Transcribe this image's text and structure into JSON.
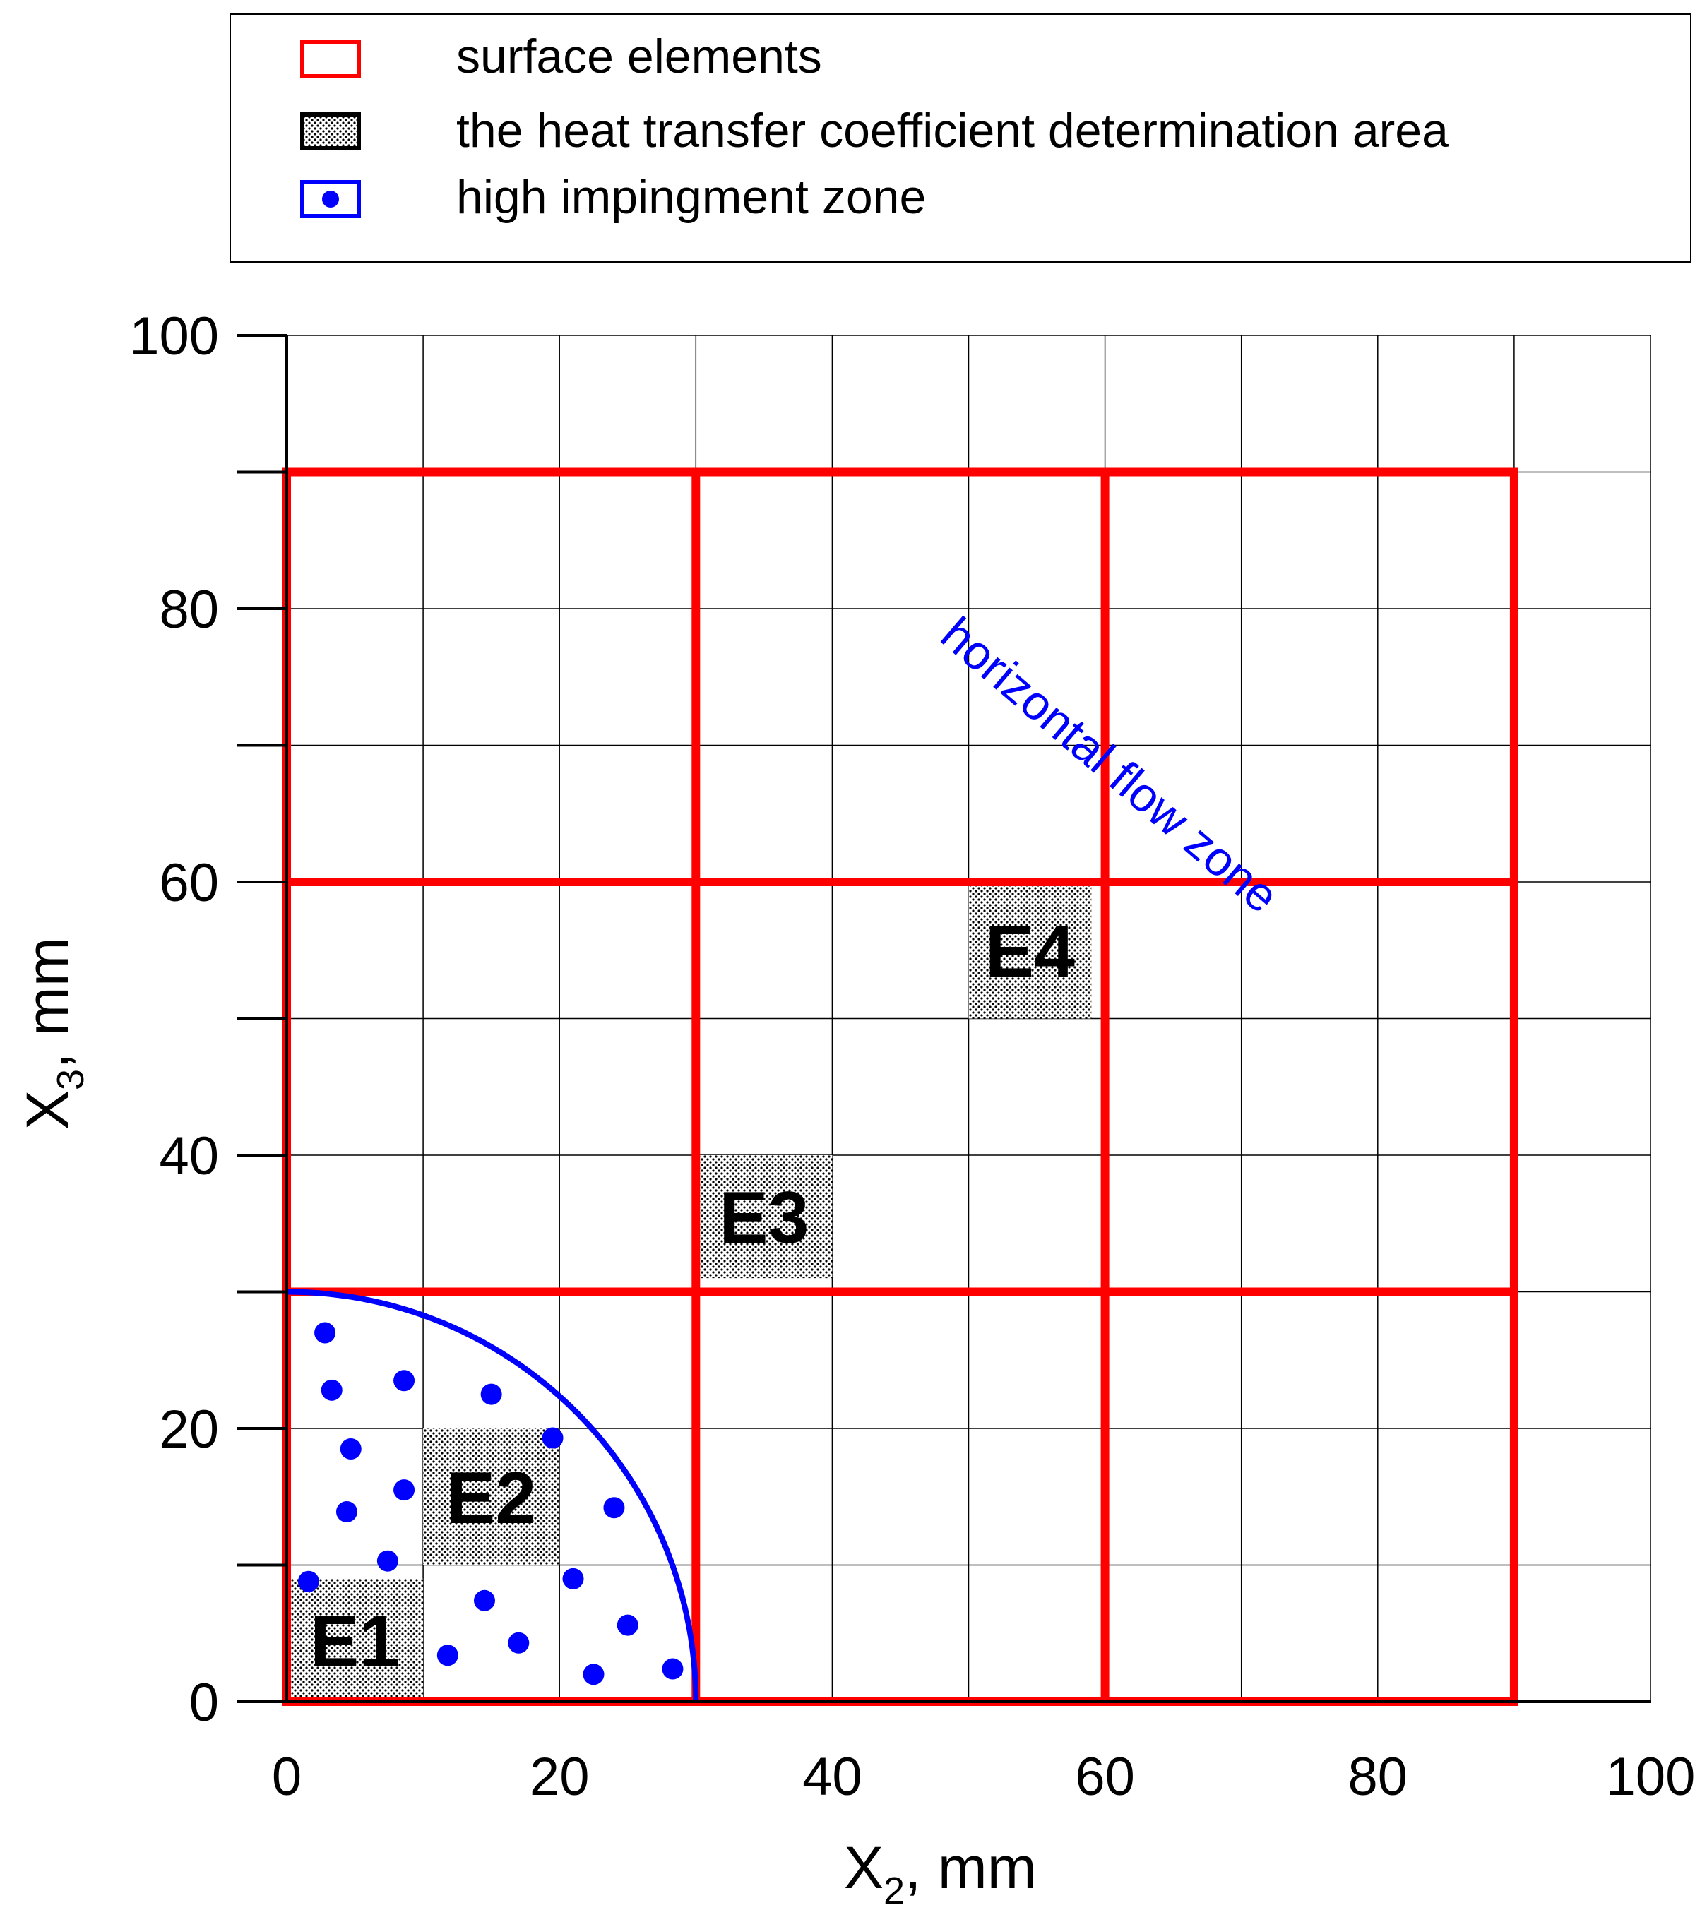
{
  "chart_data": {
    "type": "scatter",
    "xlabel": {
      "main": "X",
      "sub": "2",
      "suffix": ", mm"
    },
    "ylabel": {
      "main": "X",
      "sub": "3",
      "suffix": ", mm"
    },
    "xlim": [
      0,
      100
    ],
    "ylim": [
      0,
      100
    ],
    "xticks": [
      "0",
      "20",
      "40",
      "60",
      "80",
      "100"
    ],
    "yticks": [
      "0",
      "20",
      "40",
      "60",
      "80",
      "100"
    ],
    "x_tick_values": [
      0,
      20,
      40,
      60,
      80,
      100
    ],
    "y_tick_values": [
      0,
      20,
      40,
      60,
      80,
      100
    ],
    "grid": true,
    "grid_step": 10,
    "legend_placement": "top",
    "legend": [
      {
        "label": "surface elements",
        "symbol": "red-square-outline",
        "color": "#ff0000"
      },
      {
        "label": "the heat transfer coefficient determination area",
        "symbol": "dotted-square",
        "color": "#000000"
      },
      {
        "label": "high impingment zone",
        "symbol": "blue-dot-in-square",
        "color": "#0000ff"
      }
    ],
    "surface_elements": {
      "color": "#ff0000",
      "boundary": [
        0,
        90
      ],
      "lines_x": [
        30,
        60
      ],
      "lines_y": [
        30,
        60
      ]
    },
    "determination_areas": [
      {
        "label": "E1",
        "x": [
          0,
          10
        ],
        "y": [
          0,
          9
        ]
      },
      {
        "label": "E2",
        "x": [
          10,
          20
        ],
        "y": [
          10,
          20
        ]
      },
      {
        "label": "E3",
        "x": [
          30,
          40
        ],
        "y": [
          31,
          40
        ]
      },
      {
        "label": "E4",
        "x": [
          50,
          59
        ],
        "y": [
          50,
          60
        ]
      }
    ],
    "impingement_zone": {
      "color": "#0000ff",
      "radius": 30,
      "points": [
        [
          2.8,
          27
        ],
        [
          3.3,
          22.8
        ],
        [
          8.6,
          23.5
        ],
        [
          15,
          22.5
        ],
        [
          19.5,
          19.3
        ],
        [
          4.7,
          18.5
        ],
        [
          8.6,
          15.5
        ],
        [
          4.4,
          13.9
        ],
        [
          24,
          14.2
        ],
        [
          7.4,
          10.3
        ],
        [
          1.6,
          8.8
        ],
        [
          21,
          9.0
        ],
        [
          14.5,
          7.4
        ],
        [
          25,
          5.6
        ],
        [
          17,
          4.3
        ],
        [
          11.8,
          3.4
        ],
        [
          22.5,
          2.0
        ],
        [
          28.3,
          2.4
        ]
      ]
    },
    "annotations": [
      {
        "text": "horizontal flow zone",
        "color": "#0000ff"
      }
    ]
  }
}
